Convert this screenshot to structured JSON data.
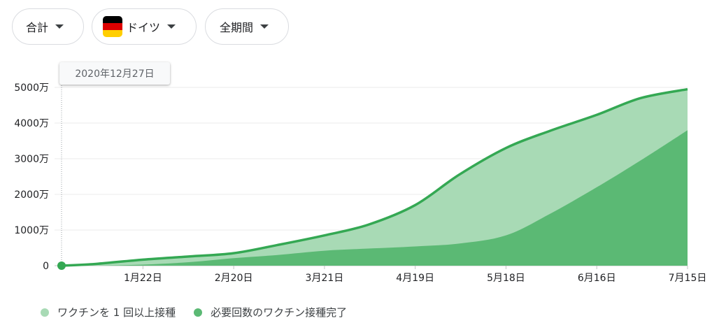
{
  "controls": {
    "metric": {
      "label": "合計",
      "icon": "dropdown-caret-icon"
    },
    "country": {
      "label": "ドイツ",
      "flag_icon": "germany-flag-icon",
      "flag_colors": [
        "#000000",
        "#dd0000",
        "#ffce00"
      ]
    },
    "period": {
      "label": "全期間",
      "icon": "dropdown-caret-icon"
    }
  },
  "tooltip": {
    "label": "2020年12月27日"
  },
  "colors": {
    "one_dose": "#a8dab5",
    "full": "#5bb974",
    "line": "#34a853",
    "grid": "#ebebeb"
  },
  "chart_data": {
    "type": "area",
    "yticks": [
      "0",
      "1000万",
      "2000万",
      "3000万",
      "4000万",
      "5000万"
    ],
    "ylim": [
      0,
      50000000
    ],
    "xtick_labels": [
      "1月22日",
      "2月20日",
      "3月21日",
      "4月19日",
      "5月18日",
      "6月16日",
      "7月15日"
    ],
    "xtick_dates": [
      "2021-01-22",
      "2021-02-20",
      "2021-03-21",
      "2021-04-19",
      "2021-05-18",
      "2021-06-16",
      "2021-07-15"
    ],
    "xlim": [
      "2020-12-27",
      "2021-07-15"
    ],
    "x": [
      "2020-12-27",
      "2021-01-07",
      "2021-01-22",
      "2021-02-06",
      "2021-02-20",
      "2021-03-06",
      "2021-03-21",
      "2021-04-04",
      "2021-04-19",
      "2021-05-03",
      "2021-05-18",
      "2021-06-01",
      "2021-06-16",
      "2021-06-30",
      "2021-07-15"
    ],
    "series": [
      {
        "name": "ワクチンを 1 回以上接種",
        "values": [
          0,
          500000,
          1700000,
          2600000,
          3500000,
          5800000,
          8500000,
          11500000,
          17000000,
          25500000,
          33000000,
          37800000,
          42300000,
          47000000,
          49500000
        ]
      },
      {
        "name": "必要回数のワクチン接種完了",
        "values": [
          0,
          0,
          300000,
          1000000,
          2100000,
          3000000,
          4200000,
          4800000,
          5400000,
          6200000,
          8500000,
          14500000,
          22000000,
          29500000,
          38000000
        ]
      }
    ]
  }
}
